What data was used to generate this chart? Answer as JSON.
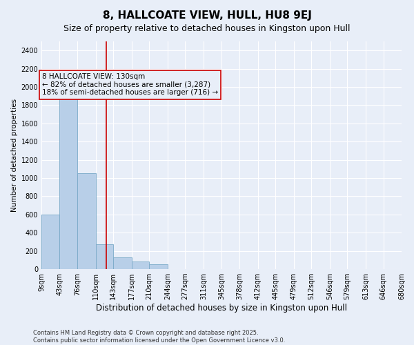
{
  "title": "8, HALLCOATE VIEW, HULL, HU8 9EJ",
  "subtitle": "Size of property relative to detached houses in Kingston upon Hull",
  "xlabel": "Distribution of detached houses by size in Kingston upon Hull",
  "ylabel": "Number of detached properties",
  "background_color": "#e8eef8",
  "bar_color": "#b8cfe8",
  "bar_edge_color": "#7aaac8",
  "grid_color": "#ffffff",
  "annotation_box_color": "#cc0000",
  "vline_color": "#cc0000",
  "vline_x": 130,
  "annotation_text": "8 HALLCOATE VIEW: 130sqm\n← 82% of detached houses are smaller (3,287)\n18% of semi-detached houses are larger (716) →",
  "footnote": "Contains HM Land Registry data © Crown copyright and database right 2025.\nContains public sector information licensed under the Open Government Licence v3.0.",
  "bins": [
    9,
    43,
    76,
    110,
    143,
    177,
    210,
    244,
    277,
    311,
    345,
    378,
    412,
    445,
    479,
    512,
    546,
    579,
    613,
    646,
    680
  ],
  "values": [
    600,
    1900,
    1050,
    270,
    130,
    80,
    50,
    0,
    0,
    0,
    0,
    0,
    0,
    0,
    0,
    0,
    0,
    0,
    0,
    0
  ],
  "ylim": [
    0,
    2500
  ],
  "yticks": [
    0,
    200,
    400,
    600,
    800,
    1000,
    1200,
    1400,
    1600,
    1800,
    2000,
    2200,
    2400
  ],
  "title_fontsize": 11,
  "subtitle_fontsize": 9,
  "xlabel_fontsize": 8.5,
  "ylabel_fontsize": 7.5,
  "tick_fontsize": 7,
  "footnote_fontsize": 6,
  "annotation_fontsize": 7.5
}
